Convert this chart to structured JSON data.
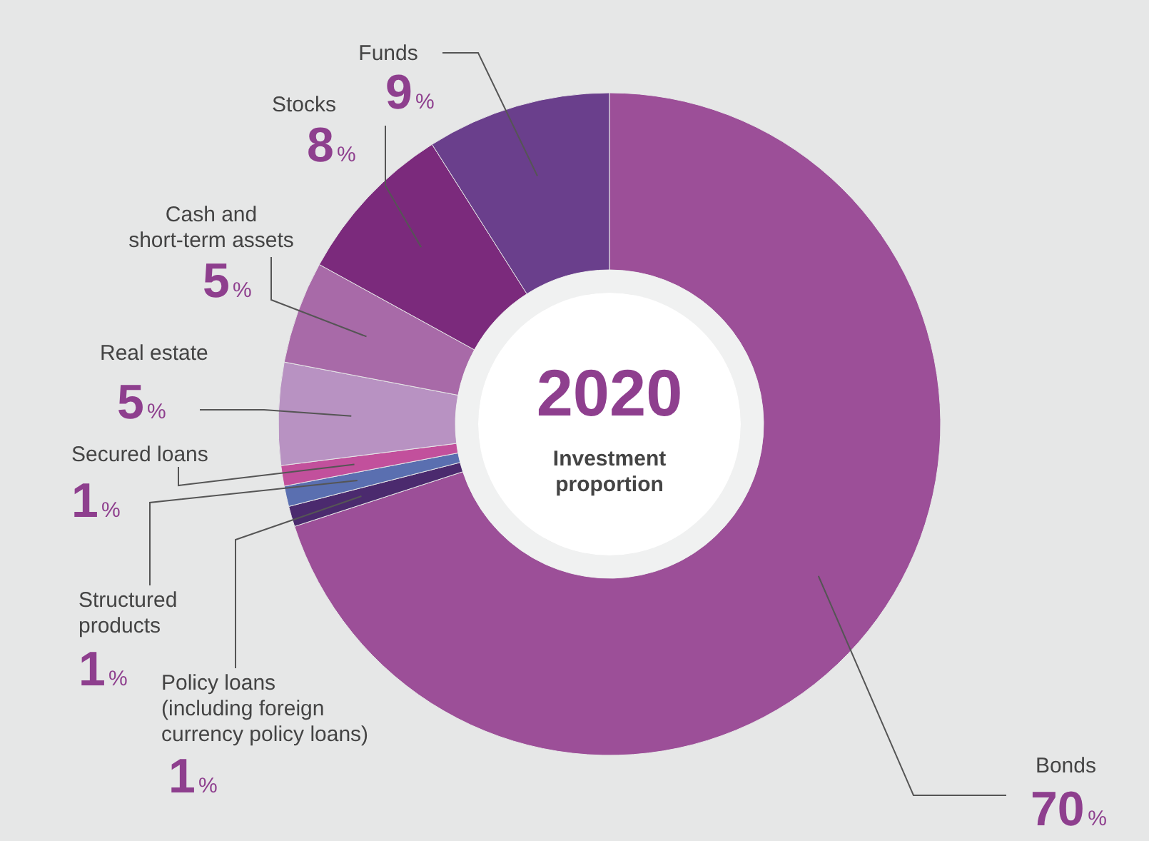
{
  "chart_data": {
    "type": "donut",
    "categories": [
      "Bonds",
      "Policy loans\n(including foreign\ncurrency policy loans)",
      "Structured\nproducts",
      "Secured loans",
      "Real estate",
      "Cash and\nshort-term assets",
      "Stocks",
      "Funds"
    ],
    "values": [
      70,
      1,
      1,
      1,
      5,
      5,
      8,
      9
    ],
    "colors": [
      "#9c4f98",
      "#4b2a6e",
      "#5a6fb0",
      "#c2509c",
      "#b892c2",
      "#a86aa8",
      "#7b2a7c",
      "#6a3f8c"
    ],
    "value_labels": [
      "70%",
      "1%",
      "1%",
      "1%",
      "5%",
      "5%",
      "8%",
      "9%"
    ],
    "annotations": [
      "2020",
      "Investment\nproportion"
    ]
  }
}
